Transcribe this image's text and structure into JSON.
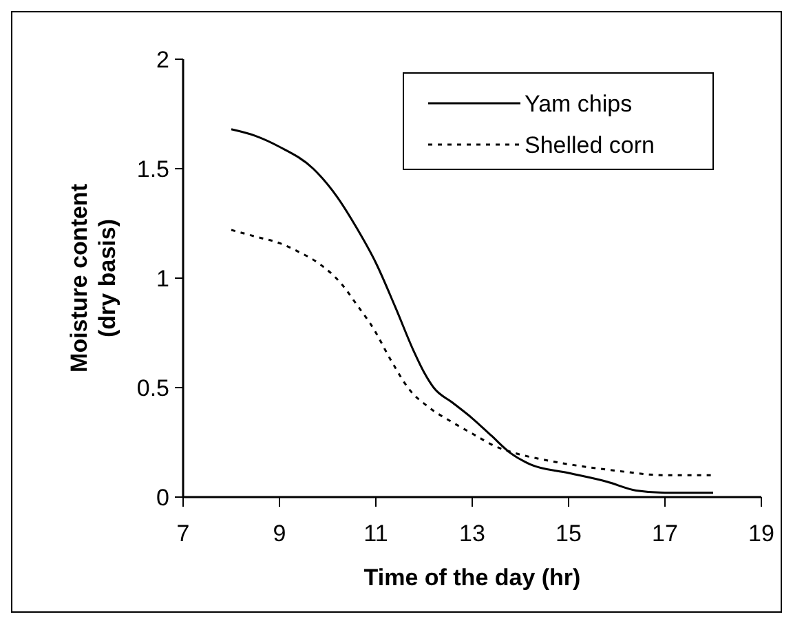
{
  "chart_data": {
    "type": "line",
    "xlabel": "Time of the day (hr)",
    "ylabel": "Moisture content\n(dry basis)",
    "xlim": [
      7,
      19
    ],
    "xticks": [
      7,
      9,
      11,
      13,
      15,
      17,
      19
    ],
    "ylim": [
      0,
      2
    ],
    "yticks": [
      0,
      0.5,
      1,
      1.5,
      2
    ],
    "legend": "top right",
    "grid": false,
    "series": [
      {
        "name": "Yam chips",
        "color": "#000000",
        "line_style": "solid",
        "x": [
          8,
          8.5,
          9,
          9.7,
          10.2,
          10.6,
          11,
          11.4,
          11.8,
          12,
          12.2,
          12.6,
          13,
          13.4,
          13.8,
          14.2,
          15,
          15.8,
          16.4,
          17,
          18
        ],
        "values": [
          1.68,
          1.65,
          1.6,
          1.5,
          1.37,
          1.23,
          1.07,
          0.87,
          0.66,
          0.57,
          0.5,
          0.43,
          0.36,
          0.28,
          0.2,
          0.15,
          0.11,
          0.07,
          0.03,
          0.02,
          0.02
        ]
      },
      {
        "name": "Shelled corn",
        "color": "#000000",
        "line_style": "dotted",
        "x": [
          8,
          8.5,
          9,
          9.4,
          9.8,
          10.3,
          10.6,
          10.95,
          11.3,
          11.7,
          12.1,
          12.6,
          13,
          13.5,
          13.9,
          14.5,
          15,
          16,
          17,
          18
        ],
        "values": [
          1.22,
          1.19,
          1.16,
          1.12,
          1.07,
          0.97,
          0.88,
          0.77,
          0.63,
          0.49,
          0.41,
          0.34,
          0.29,
          0.23,
          0.2,
          0.17,
          0.15,
          0.12,
          0.1,
          0.1
        ]
      }
    ]
  }
}
